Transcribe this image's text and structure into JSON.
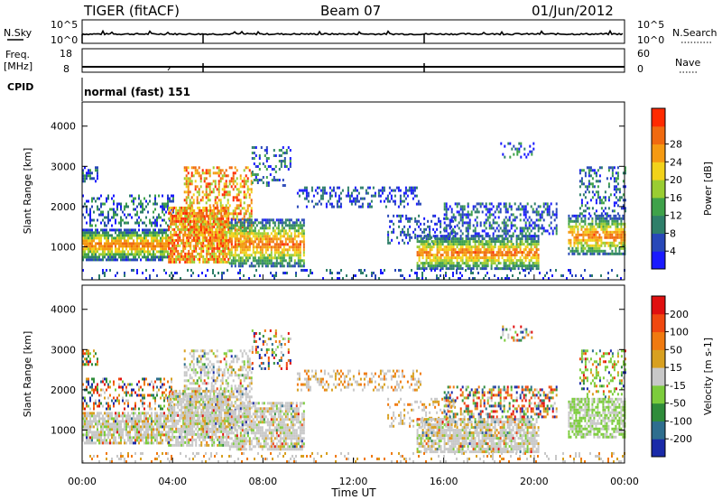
{
  "header": {
    "radar": "TIGER (fitACF)",
    "beam": "Beam 07",
    "date": "01/Jun/2012"
  },
  "strips": {
    "nsky_label": "N.Sky",
    "nsearch_label": "N.Search",
    "nsky_ticks": [
      "10^5",
      "10^0"
    ],
    "nsearch_ticks": [
      "10^5",
      "10^0"
    ],
    "freq_label_1": "Freq.",
    "freq_label_2": "[MHz]",
    "freq_ticks": [
      "18",
      "8"
    ],
    "nave_label": "Nave",
    "nave_ticks": [
      "60",
      "0"
    ],
    "cpid_label": "CPID",
    "cpid_value": "normal (fast) 151"
  },
  "chart_data": [
    {
      "type": "heatmap",
      "title": "",
      "xlabel": "Time UT",
      "ylabel": "Slant Range [km]",
      "x_ticks": [
        "00:00",
        "04:00",
        "08:00",
        "12:00",
        "16:00",
        "20:00",
        "00:00"
      ],
      "y_ticks": [
        1000,
        2000,
        3000,
        4000
      ],
      "ylim": [
        180,
        4600
      ],
      "xlim_hours": [
        0,
        24
      ],
      "colorbar": {
        "label": "Power [dB]",
        "ticks": [
          "4",
          "8",
          "12",
          "16",
          "20",
          "24",
          "28"
        ],
        "colors": [
          "#1a1aff",
          "#2848b8",
          "#2f7f6a",
          "#3fa24a",
          "#9acd32",
          "#f2d21a",
          "#f59a12",
          "#f06a10",
          "#ff2a00"
        ]
      },
      "series": [
        {
          "name": "Power",
          "description_values_db": "4-30"
        }
      ]
    },
    {
      "type": "heatmap",
      "title": "",
      "xlabel": "Time UT",
      "ylabel": "Slant Range [km]",
      "x_ticks": [
        "00:00",
        "04:00",
        "08:00",
        "12:00",
        "16:00",
        "20:00",
        "00:00"
      ],
      "y_ticks": [
        1000,
        2000,
        3000,
        4000
      ],
      "ylim": [
        180,
        4600
      ],
      "xlim_hours": [
        0,
        24
      ],
      "colorbar": {
        "label": "Velocity [m s",
        "label_sup": "-1",
        "label_end": "]",
        "ticks": [
          "200",
          "100",
          "50",
          "15",
          "-15",
          "-50",
          "-100",
          "-200"
        ],
        "colors": [
          "#1a2aa8",
          "#2e6e8e",
          "#2f8c3a",
          "#7ccc3c",
          "#c8c8c8",
          "#d8a020",
          "#f07a10",
          "#f04810",
          "#e01010"
        ]
      }
    }
  ]
}
